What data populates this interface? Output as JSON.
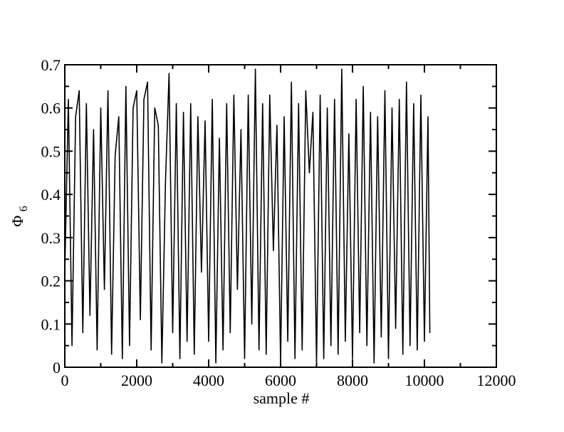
{
  "chart_data": {
    "type": "line",
    "title": "",
    "xlabel": "sample #",
    "ylabel": {
      "main": "Φ",
      "subscript": "6"
    },
    "xlim": [
      0,
      12000
    ],
    "ylim": [
      0,
      0.7
    ],
    "x_ticks": [
      0,
      2000,
      4000,
      6000,
      8000,
      10000,
      12000
    ],
    "x_tick_labels": [
      "0",
      "2000",
      "4000",
      "6000",
      "8000",
      "10000",
      "12000"
    ],
    "y_ticks": [
      0,
      0.1,
      0.2,
      0.3,
      0.4,
      0.5,
      0.6,
      0.7
    ],
    "y_tick_labels": [
      "0",
      "0.1",
      "0.2",
      "0.3",
      "0.4",
      "0.5",
      "0.6",
      "0.7"
    ],
    "grid": false,
    "legend": "none",
    "series": [
      {
        "color": "#000000",
        "x": [
          0,
          100,
          200,
          300,
          400,
          500,
          600,
          700,
          800,
          900,
          1000,
          1100,
          1200,
          1300,
          1400,
          1500,
          1600,
          1700,
          1800,
          1900,
          2000,
          2100,
          2200,
          2300,
          2400,
          2500,
          2600,
          2700,
          2800,
          2900,
          3000,
          3100,
          3200,
          3300,
          3400,
          3500,
          3600,
          3700,
          3800,
          3900,
          4000,
          4100,
          4200,
          4300,
          4400,
          4500,
          4600,
          4700,
          4800,
          4900,
          5000,
          5100,
          5200,
          5300,
          5400,
          5500,
          5600,
          5700,
          5800,
          5900,
          6000,
          6100,
          6200,
          6300,
          6400,
          6500,
          6600,
          6700,
          6800,
          6900,
          7000,
          7100,
          7200,
          7300,
          7400,
          7500,
          7600,
          7700,
          7800,
          7900,
          8000,
          8100,
          8200,
          8300,
          8400,
          8500,
          8600,
          8700,
          8800,
          8900,
          9000,
          9100,
          9200,
          9300,
          9400,
          9500,
          9600,
          9700,
          9800,
          9900,
          10000,
          10100,
          10150
        ],
        "y": [
          0.22,
          0.62,
          0.05,
          0.58,
          0.64,
          0.08,
          0.61,
          0.12,
          0.55,
          0.04,
          0.6,
          0.18,
          0.64,
          0.03,
          0.49,
          0.58,
          0.02,
          0.65,
          0.05,
          0.6,
          0.64,
          0.11,
          0.62,
          0.66,
          0.04,
          0.6,
          0.56,
          0.01,
          0.43,
          0.68,
          0.08,
          0.61,
          0.02,
          0.59,
          0.06,
          0.61,
          0.03,
          0.58,
          0.22,
          0.57,
          0.06,
          0.62,
          0.01,
          0.53,
          0.04,
          0.61,
          0.08,
          0.63,
          0.18,
          0.55,
          0.02,
          0.63,
          0.1,
          0.69,
          0.04,
          0.61,
          0.03,
          0.63,
          0.27,
          0.56,
          0.01,
          0.58,
          0.06,
          0.66,
          0.02,
          0.61,
          0.04,
          0.64,
          0.45,
          0.59,
          0.01,
          0.63,
          0.02,
          0.6,
          0.05,
          0.62,
          0.03,
          0.69,
          0.06,
          0.54,
          0.02,
          0.62,
          0.08,
          0.65,
          0.05,
          0.59,
          0.01,
          0.58,
          0.07,
          0.64,
          0.02,
          0.6,
          0.09,
          0.62,
          0.03,
          0.66,
          0.05,
          0.61,
          0.04,
          0.63,
          0.06,
          0.58,
          0.08
        ]
      }
    ]
  }
}
